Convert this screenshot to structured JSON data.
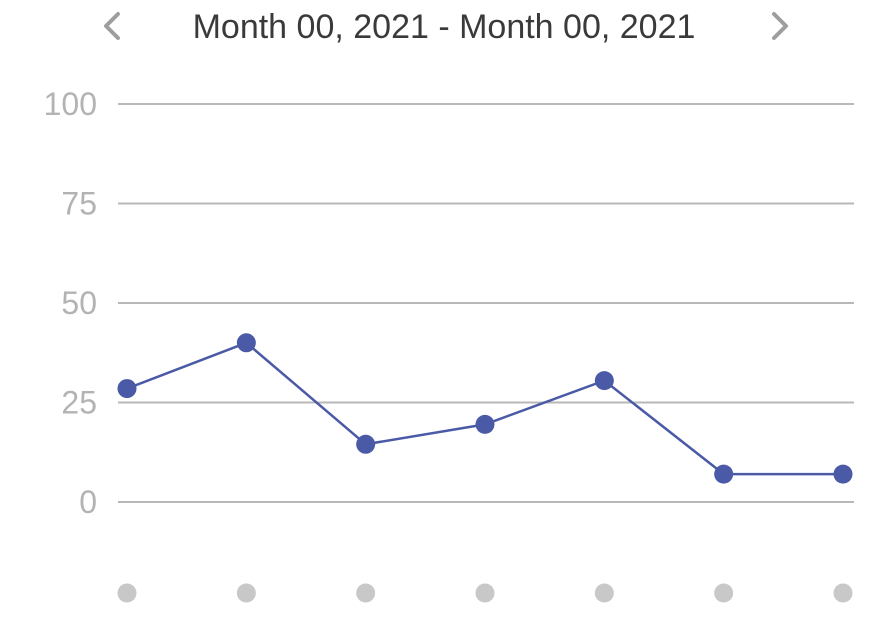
{
  "header": {
    "range_label": "Month 00, 2021 - Month 00, 2021",
    "prev_icon": "chevron-left-icon",
    "next_icon": "chevron-right-icon"
  },
  "colors": {
    "series": "#4a5aa6",
    "grid": "#b8b8b8",
    "tick_text": "#b3b3b3",
    "x_dot": "#c8c8c8",
    "title_text": "#3a3a3a",
    "chevron": "#9e9e9e"
  },
  "chart_data": {
    "type": "line",
    "title": "",
    "xlabel": "",
    "ylabel": "",
    "ylim": [
      0,
      100
    ],
    "yticks": [
      {
        "value": 100,
        "label": "100"
      },
      {
        "value": 75,
        "label": "75"
      },
      {
        "value": 50,
        "label": "50"
      },
      {
        "value": 25,
        "label": "25"
      },
      {
        "value": 0,
        "label": "0"
      }
    ],
    "x_tick_marker": "dot",
    "grid": true,
    "series": [
      {
        "values": [
          28.5,
          40,
          14.5,
          19.5,
          30.5,
          7,
          7
        ]
      }
    ]
  }
}
